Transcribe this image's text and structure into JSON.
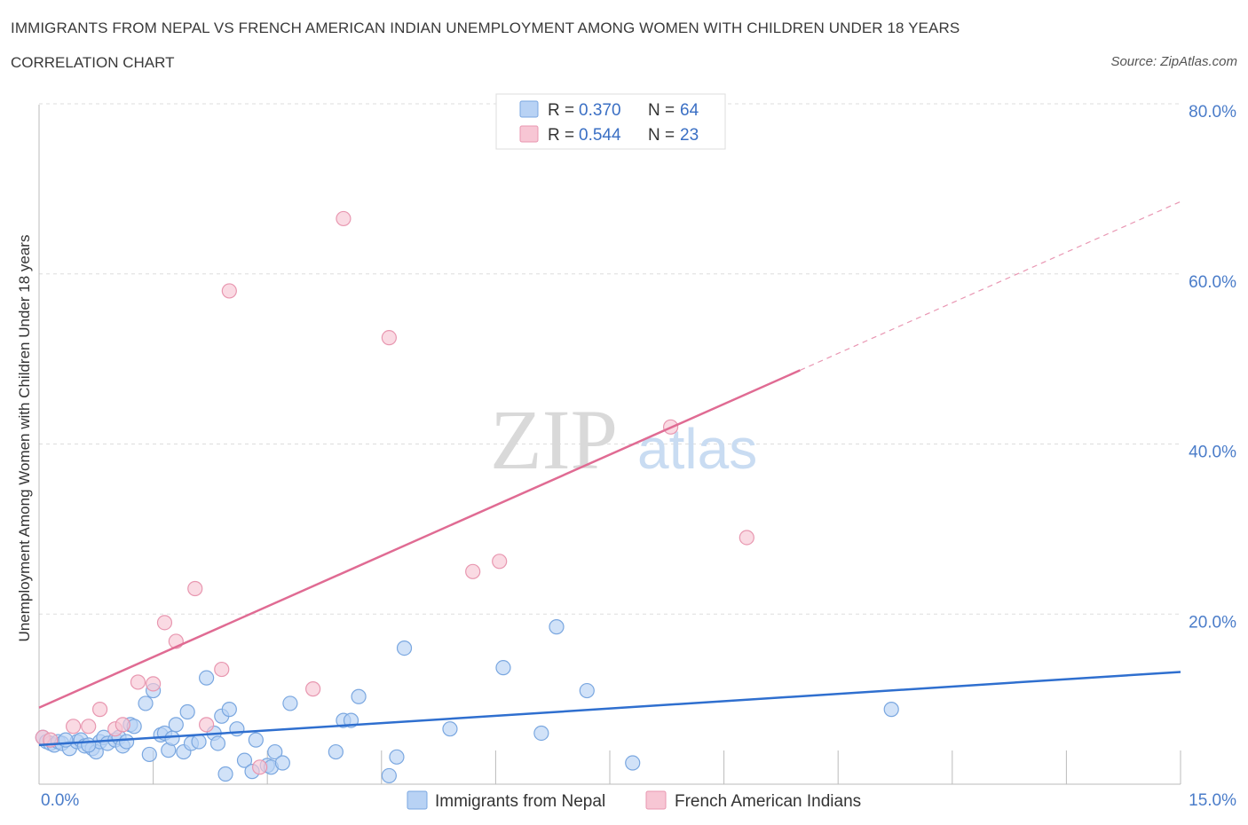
{
  "header": {
    "title": "IMMIGRANTS FROM NEPAL VS FRENCH AMERICAN INDIAN UNEMPLOYMENT AMONG WOMEN WITH CHILDREN UNDER 18 YEARS",
    "subtitle": "CORRELATION CHART",
    "source": "Source: ZipAtlas.com"
  },
  "colors": {
    "blue_fill": "#b8d2f4",
    "blue_stroke": "#7aa7e0",
    "blue_line": "#2f6fcf",
    "pink_fill": "#f7c6d4",
    "pink_stroke": "#e897b0",
    "pink_line": "#e06b93",
    "grid": "#dddddd",
    "tick_text": "#4a7cc9"
  },
  "watermark": {
    "zip": "ZIP",
    "atlas": "atlas"
  },
  "stats_legend": {
    "rows": [
      {
        "r_label": "R = ",
        "r_value": "0.370",
        "n_label": "N = ",
        "n_value": "64"
      },
      {
        "r_label": "R = ",
        "r_value": "0.544",
        "n_label": "N = ",
        "n_value": "23"
      }
    ]
  },
  "chart_data": {
    "type": "scatter",
    "title": "IMMIGRANTS FROM NEPAL VS FRENCH AMERICAN INDIAN UNEMPLOYMENT AMONG WOMEN WITH CHILDREN UNDER 18 YEARS",
    "xlabel": "",
    "ylabel": "Unemployment Among Women with Children Under 18 years",
    "xlim": [
      0,
      15
    ],
    "ylim": [
      0,
      80
    ],
    "x_tick_labels": [
      "0.0%",
      "15.0%"
    ],
    "y_ticks": [
      20,
      40,
      60,
      80
    ],
    "y_tick_labels": [
      "20.0%",
      "40.0%",
      "60.0%",
      "80.0%"
    ],
    "legend_position": "bottom-center",
    "series": [
      {
        "name": "Immigrants from Nepal",
        "color": "blue",
        "trend": {
          "x": [
            0,
            15
          ],
          "y": [
            4.6,
            13.2
          ],
          "solid_until": 15
        },
        "points": [
          [
            0.05,
            5.5
          ],
          [
            0.1,
            5.0
          ],
          [
            0.15,
            4.8
          ],
          [
            0.2,
            4.6
          ],
          [
            0.25,
            5.0
          ],
          [
            0.3,
            4.8
          ],
          [
            0.4,
            4.2
          ],
          [
            0.5,
            5.0
          ],
          [
            0.55,
            5.2
          ],
          [
            0.6,
            4.5
          ],
          [
            0.7,
            4.2
          ],
          [
            0.75,
            3.8
          ],
          [
            0.8,
            5.0
          ],
          [
            0.85,
            5.5
          ],
          [
            0.9,
            4.8
          ],
          [
            1.0,
            5.2
          ],
          [
            1.05,
            5.5
          ],
          [
            1.1,
            4.5
          ],
          [
            1.2,
            7.0
          ],
          [
            1.25,
            6.8
          ],
          [
            1.4,
            9.5
          ],
          [
            1.45,
            3.5
          ],
          [
            1.5,
            11.0
          ],
          [
            1.6,
            5.8
          ],
          [
            1.65,
            6.0
          ],
          [
            1.7,
            4.0
          ],
          [
            1.8,
            7.0
          ],
          [
            1.9,
            3.8
          ],
          [
            1.95,
            8.5
          ],
          [
            2.0,
            4.8
          ],
          [
            2.1,
            5.0
          ],
          [
            2.2,
            12.5
          ],
          [
            2.3,
            6.0
          ],
          [
            2.35,
            4.8
          ],
          [
            2.4,
            8.0
          ],
          [
            2.45,
            1.2
          ],
          [
            2.5,
            8.8
          ],
          [
            2.6,
            6.5
          ],
          [
            2.7,
            2.8
          ],
          [
            2.8,
            1.5
          ],
          [
            2.85,
            5.2
          ],
          [
            3.0,
            2.2
          ],
          [
            3.05,
            2.0
          ],
          [
            3.1,
            3.8
          ],
          [
            3.2,
            2.5
          ],
          [
            3.3,
            9.5
          ],
          [
            3.9,
            3.8
          ],
          [
            4.0,
            7.5
          ],
          [
            4.1,
            7.5
          ],
          [
            4.2,
            10.3
          ],
          [
            4.6,
            1.0
          ],
          [
            4.7,
            3.2
          ],
          [
            4.8,
            16.0
          ],
          [
            5.4,
            6.5
          ],
          [
            6.1,
            13.7
          ],
          [
            6.6,
            6.0
          ],
          [
            6.8,
            18.5
          ],
          [
            7.2,
            11.0
          ],
          [
            7.8,
            2.5
          ],
          [
            11.2,
            8.8
          ],
          [
            0.35,
            5.2
          ],
          [
            0.65,
            4.6
          ],
          [
            1.15,
            5.0
          ],
          [
            1.75,
            5.4
          ]
        ]
      },
      {
        "name": "French American Indians",
        "color": "pink",
        "trend": {
          "x": [
            0,
            15
          ],
          "y": [
            9.0,
            68.5
          ],
          "solid_until": 10.0
        },
        "points": [
          [
            0.05,
            5.5
          ],
          [
            0.15,
            5.2
          ],
          [
            0.45,
            6.8
          ],
          [
            0.65,
            6.8
          ],
          [
            0.8,
            8.8
          ],
          [
            1.0,
            6.5
          ],
          [
            1.1,
            7.0
          ],
          [
            1.3,
            12.0
          ],
          [
            1.5,
            11.8
          ],
          [
            1.65,
            19.0
          ],
          [
            1.8,
            16.8
          ],
          [
            2.05,
            23.0
          ],
          [
            2.2,
            7.0
          ],
          [
            2.4,
            13.5
          ],
          [
            2.5,
            58.0
          ],
          [
            2.9,
            2.0
          ],
          [
            3.6,
            11.2
          ],
          [
            4.0,
            66.5
          ],
          [
            4.6,
            52.5
          ],
          [
            5.7,
            25.0
          ],
          [
            6.05,
            26.2
          ],
          [
            8.3,
            42.0
          ],
          [
            9.3,
            29.0
          ]
        ]
      }
    ]
  }
}
